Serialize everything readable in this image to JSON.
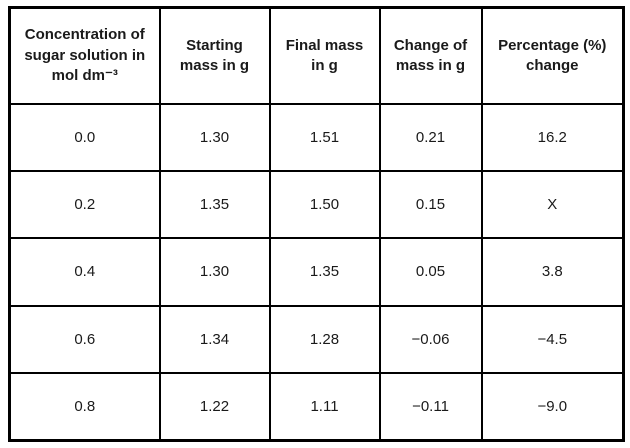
{
  "table": {
    "headers": [
      "Concentration of sugar solution in mol dm⁻³",
      "Starting mass in g",
      "Final mass in g",
      "Change of mass in g",
      "Percentage (%) change"
    ],
    "rows": [
      [
        "0.0",
        "1.30",
        "1.51",
        "0.21",
        "16.2"
      ],
      [
        "0.2",
        "1.35",
        "1.50",
        "0.15",
        "X"
      ],
      [
        "0.4",
        "1.30",
        "1.35",
        "0.05",
        "3.8"
      ],
      [
        "0.6",
        "1.34",
        "1.28",
        "−0.06",
        "−4.5"
      ],
      [
        "0.8",
        "1.22",
        "1.11",
        "−0.11",
        "−9.0"
      ]
    ]
  }
}
